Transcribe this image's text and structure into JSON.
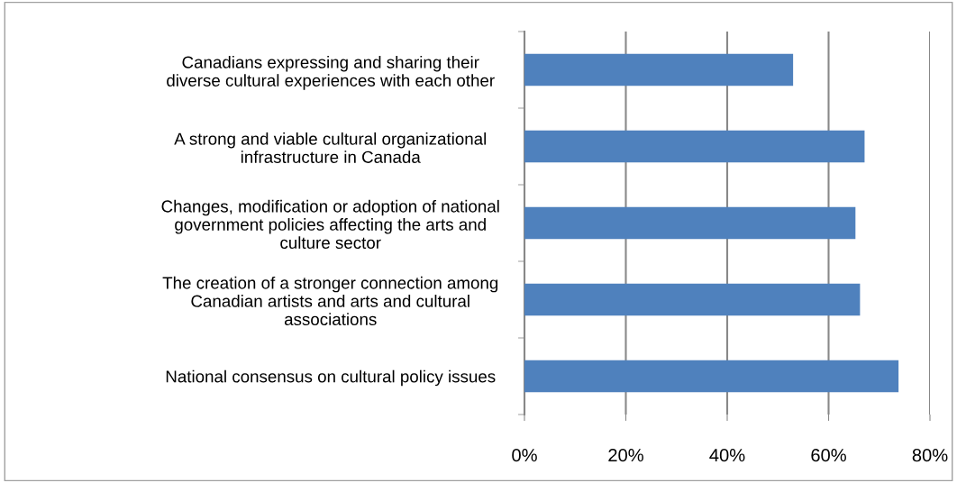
{
  "chart_data": {
    "type": "bar",
    "orientation": "horizontal",
    "categories": [
      "Canadians expressing and sharing their\ndiverse cultural experiences with each other",
      "A strong and viable cultural organizational\ninfrastructure in Canada",
      "Changes, modification or adoption of national\ngovernment policies affecting the arts and\nculture sector",
      "The creation of a stronger connection among\nCanadian artists and arts and cultural\nassociations",
      "National consensus on cultural policy issues"
    ],
    "values": [
      53.0,
      67.1,
      65.3,
      66.2,
      73.8
    ],
    "color": "#4f81bd",
    "xlim": [
      0,
      80
    ],
    "xticks": [
      {
        "value": 0,
        "label": "0%"
      },
      {
        "value": 20,
        "label": "20%"
      },
      {
        "value": 40,
        "label": "40%"
      },
      {
        "value": 60,
        "label": "60%"
      },
      {
        "value": 80,
        "label": "80%"
      }
    ],
    "grid": "x",
    "legend": false
  }
}
